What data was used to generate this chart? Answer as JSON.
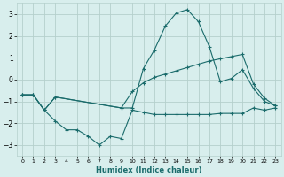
{
  "xlabel": "Humidex (Indice chaleur)",
  "bg_color": "#d8eeed",
  "line_color": "#1a6b6b",
  "grid_color": "#b5d0cc",
  "xlim": [
    -0.5,
    23.5
  ],
  "ylim": [
    -3.5,
    3.5
  ],
  "xticks": [
    0,
    1,
    2,
    3,
    4,
    5,
    6,
    7,
    8,
    9,
    10,
    11,
    12,
    13,
    14,
    15,
    16,
    17,
    18,
    19,
    20,
    21,
    22,
    23
  ],
  "yticks": [
    -3,
    -2,
    -1,
    0,
    1,
    2,
    3
  ],
  "line1_x": [
    0,
    1,
    2,
    3,
    4,
    5,
    6,
    7,
    8,
    9,
    10,
    11,
    12,
    13,
    14,
    15,
    16,
    17,
    18,
    19,
    20,
    21,
    22,
    23
  ],
  "line1_y": [
    -0.7,
    -0.7,
    -1.4,
    -1.9,
    -2.3,
    -2.3,
    -2.6,
    -3.0,
    -2.6,
    -2.7,
    -1.4,
    -1.5,
    -1.6,
    -1.6,
    -1.6,
    -1.6,
    -1.6,
    -1.6,
    -1.55,
    -1.55,
    -1.55,
    -1.3,
    -1.4,
    -1.3
  ],
  "line2_x": [
    0,
    1,
    2,
    3,
    9,
    10,
    11,
    12,
    13,
    14,
    15,
    16,
    17,
    18,
    19,
    20,
    21,
    22,
    23
  ],
  "line2_y": [
    -0.7,
    -0.7,
    -1.4,
    -0.8,
    -1.3,
    -1.3,
    0.5,
    1.35,
    2.45,
    3.05,
    3.2,
    2.65,
    1.5,
    -0.1,
    0.05,
    0.45,
    -0.4,
    -1.0,
    -1.2
  ],
  "line3_x": [
    0,
    1,
    2,
    3,
    9,
    10,
    11,
    12,
    13,
    14,
    15,
    16,
    17,
    18,
    19,
    20,
    21,
    22,
    23
  ],
  "line3_y": [
    -0.7,
    -0.7,
    -1.4,
    -0.8,
    -1.3,
    -0.55,
    -0.15,
    0.1,
    0.25,
    0.4,
    0.55,
    0.7,
    0.85,
    0.95,
    1.05,
    1.15,
    -0.2,
    -0.85,
    -1.2
  ]
}
